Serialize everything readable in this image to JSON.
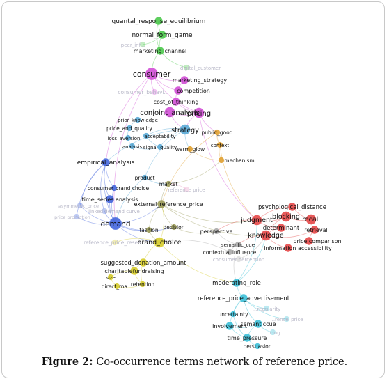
{
  "caption": {
    "label": "Figure 2:",
    "text": "Co-occurrence terms network of reference price."
  },
  "clusters": {
    "green": "#4cc94c",
    "magenta": "#d24fd6",
    "blue": "#4466dd",
    "cyan": "#3cc0d8",
    "red": "#e54848",
    "yellow": "#d6cc2a",
    "olive": "#9a9a58",
    "orange": "#e0a030",
    "skyblue": "#5aaad6",
    "pink": "#e8a0c8",
    "grey": "#aaaaaa"
  },
  "terms": [
    {
      "id": "quantal_response_equilibrium",
      "label": "quantal_response_equilibrium",
      "cluster": "green",
      "weight": 2,
      "faded": false
    },
    {
      "id": "normal_form_game",
      "label": "normal_form_game",
      "cluster": "green",
      "weight": 2,
      "faded": false
    },
    {
      "id": "peer_influence",
      "label": "peer_inf...",
      "cluster": "green",
      "weight": 1,
      "faded": true
    },
    {
      "id": "marketing_channel",
      "label": "marketing_channel",
      "cluster": "green",
      "weight": 2,
      "faded": false
    },
    {
      "id": "digital_customer",
      "label": "digital_customer",
      "cluster": "green",
      "weight": 1,
      "faded": true
    },
    {
      "id": "consumer",
      "label": "consumer",
      "cluster": "magenta",
      "weight": 4,
      "faded": false
    },
    {
      "id": "marketing_strategy",
      "label": "marketing_strategy",
      "cluster": "magenta",
      "weight": 2,
      "faded": false
    },
    {
      "id": "competition",
      "label": "competition",
      "cluster": "magenta",
      "weight": 2,
      "faded": false
    },
    {
      "id": "consumer_behavior",
      "label": "consumer_behavi...",
      "cluster": "magenta",
      "weight": 1,
      "faded": true
    },
    {
      "id": "cost_of_thinking",
      "label": "cost_of_thinking",
      "cluster": "magenta",
      "weight": 2,
      "faded": false
    },
    {
      "id": "conjoint_analysis",
      "label": "conjoint_analysis",
      "cluster": "magenta",
      "weight": 3,
      "faded": false
    },
    {
      "id": "pricing",
      "label": "pricing",
      "cluster": "magenta",
      "weight": 3,
      "faded": false
    },
    {
      "id": "prior_knowledge",
      "label": "prior_knowledge",
      "cluster": "skyblue",
      "weight": 1,
      "faded": false
    },
    {
      "id": "price_and_quality",
      "label": "price_and_quality",
      "cluster": "skyblue",
      "weight": 1,
      "faded": false
    },
    {
      "id": "strategy",
      "label": "strategy",
      "cluster": "skyblue",
      "weight": 3,
      "faded": false
    },
    {
      "id": "acceptability",
      "label": "acceptability",
      "cluster": "skyblue",
      "weight": 1,
      "faded": false
    },
    {
      "id": "loss_aversion",
      "label": "loss_aversion",
      "cluster": "skyblue",
      "weight": 1,
      "faded": false
    },
    {
      "id": "analysis",
      "label": "analysis",
      "cluster": "skyblue",
      "weight": 1,
      "faded": false
    },
    {
      "id": "signal_quality",
      "label": "signal_quality",
      "cluster": "skyblue",
      "weight": 1,
      "faded": false
    },
    {
      "id": "public_good",
      "label": "public_good",
      "cluster": "orange",
      "weight": 1,
      "faded": false
    },
    {
      "id": "context",
      "label": "context",
      "cluster": "orange",
      "weight": 1,
      "faded": false
    },
    {
      "id": "warm_glow",
      "label": "warm_glow",
      "cluster": "orange",
      "weight": 1,
      "faded": false
    },
    {
      "id": "mechanism",
      "label": "mechanism",
      "cluster": "orange",
      "weight": 1,
      "faded": false
    },
    {
      "id": "empirical_analysis",
      "label": "empirical_analysis",
      "cluster": "blue",
      "weight": 2,
      "faded": false
    },
    {
      "id": "product",
      "label": "product",
      "cluster": "skyblue",
      "weight": 1,
      "faded": false
    },
    {
      "id": "market",
      "label": "market",
      "cluster": "olive",
      "weight": 1,
      "faded": false
    },
    {
      "id": "reference_price",
      "label": "reference price",
      "cluster": "pink",
      "weight": 1,
      "faded": true
    },
    {
      "id": "consumer_brand_choice",
      "label": "consumer brand choice",
      "cluster": "blue",
      "weight": 1,
      "faded": false
    },
    {
      "id": "time_series_analysis",
      "label": "time_series analysis",
      "cluster": "blue",
      "weight": 2,
      "faded": false
    },
    {
      "id": "asymmetric_price",
      "label": "asymmetric_price",
      "cluster": "blue",
      "weight": 1,
      "faded": true
    },
    {
      "id": "linked_demand",
      "label": "linked demand curve",
      "cluster": "blue",
      "weight": 1,
      "faded": true
    },
    {
      "id": "price_promotion",
      "label": "price promotion",
      "cluster": "blue",
      "weight": 1,
      "faded": true
    },
    {
      "id": "demand",
      "label": "demand",
      "cluster": "blue",
      "weight": 4,
      "faded": false
    },
    {
      "id": "external_reference_price",
      "label": "external_reference_price",
      "cluster": "olive",
      "weight": 2,
      "faded": false
    },
    {
      "id": "fashion",
      "label": "fashion",
      "cluster": "olive",
      "weight": 1,
      "faded": false
    },
    {
      "id": "decision",
      "label": "decision",
      "cluster": "olive",
      "weight": 1,
      "faded": false
    },
    {
      "id": "psychological_distance",
      "label": "psychological_distance",
      "cluster": "red",
      "weight": 2,
      "faded": false
    },
    {
      "id": "judgment",
      "label": "judgment",
      "cluster": "red",
      "weight": 3,
      "faded": false
    },
    {
      "id": "blocking",
      "label": "blocking",
      "cluster": "red",
      "weight": 3,
      "faded": false
    },
    {
      "id": "recall",
      "label": "recall",
      "cluster": "red",
      "weight": 3,
      "faded": false
    },
    {
      "id": "determinant",
      "label": "determinant",
      "cluster": "red",
      "weight": 2,
      "faded": false
    },
    {
      "id": "knowledge",
      "label": "knowledge",
      "cluster": "red",
      "weight": 3,
      "faded": false
    },
    {
      "id": "retrieval",
      "label": "retrieval",
      "cluster": "red",
      "weight": 2,
      "faded": false
    },
    {
      "id": "price_comparison",
      "label": "price comparison",
      "cluster": "red",
      "weight": 2,
      "faded": false
    },
    {
      "id": "information_accessibility",
      "label": "information accessibility",
      "cluster": "red",
      "weight": 2,
      "faded": false
    },
    {
      "id": "perspective",
      "label": "perspective",
      "cluster": "grey",
      "weight": 1,
      "faded": false
    },
    {
      "id": "semantic_cue",
      "label": "semantic_cue",
      "cluster": "grey",
      "weight": 1,
      "faded": false
    },
    {
      "id": "contextual_influence",
      "label": "contextual influence",
      "cluster": "grey",
      "weight": 1,
      "faded": false
    },
    {
      "id": "consumer_perception",
      "label": "consumer perception",
      "cluster": "grey",
      "weight": 1,
      "faded": true
    },
    {
      "id": "reference_price_research",
      "label": "reference_price_resea...",
      "cluster": "yellow",
      "weight": 1,
      "faded": true
    },
    {
      "id": "brand_choice",
      "label": "brand_choice",
      "cluster": "yellow",
      "weight": 3,
      "faded": false
    },
    {
      "id": "suggested_donation_amount",
      "label": "suggested_donation_amount",
      "cluster": "yellow",
      "weight": 2,
      "faded": false
    },
    {
      "id": "charitable_fundraising",
      "label": "charitablefundraising",
      "cluster": "yellow",
      "weight": 2,
      "faded": false
    },
    {
      "id": "size",
      "label": "size",
      "cluster": "yellow",
      "weight": 1,
      "faded": false
    },
    {
      "id": "direct_mail",
      "label": "direct_ma...",
      "cluster": "yellow",
      "weight": 1,
      "faded": false
    },
    {
      "id": "retention",
      "label": "retention",
      "cluster": "yellow",
      "weight": 1,
      "faded": false
    },
    {
      "id": "moderating_role",
      "label": "moderating_role",
      "cluster": "cyan",
      "weight": 2,
      "faded": false
    },
    {
      "id": "reference_price_advertisement",
      "label": "reference_price_advertisement",
      "cluster": "cyan",
      "weight": 2,
      "faded": false
    },
    {
      "id": "regularity",
      "label": "...regularity",
      "cluster": "cyan",
      "weight": 1,
      "faded": true
    },
    {
      "id": "uncertainty",
      "label": "uncertainty",
      "cluster": "cyan",
      "weight": 1,
      "faded": false
    },
    {
      "id": "reference_price_cyan",
      "label": "...rence_price",
      "cluster": "cyan",
      "weight": 1,
      "faded": true
    },
    {
      "id": "involvement",
      "label": "involvement",
      "cluster": "cyan",
      "weight": 2,
      "faded": false
    },
    {
      "id": "semantic_cue_2",
      "label": "semanticcue",
      "cluster": "cyan",
      "weight": 2,
      "faded": false
    },
    {
      "id": "pricing_cyan",
      "label": "...cing",
      "cluster": "cyan",
      "weight": 1,
      "faded": true
    },
    {
      "id": "time_pressure",
      "label": "time_pressure",
      "cluster": "cyan",
      "weight": 2,
      "faded": false
    },
    {
      "id": "persuasion",
      "label": "persuasion",
      "cluster": "cyan",
      "weight": 1,
      "faded": false
    }
  ]
}
